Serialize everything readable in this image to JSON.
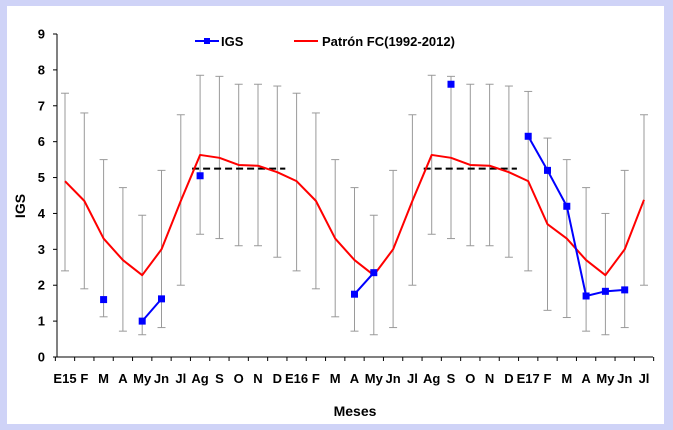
{
  "chart_data": {
    "type": "line",
    "xlabel": "Meses",
    "ylabel": "IGS",
    "ylim": [
      0,
      9
    ],
    "yticks": [
      "0",
      "1",
      "2",
      "3",
      "4",
      "5",
      "6",
      "7",
      "8",
      "9"
    ],
    "categories": [
      "E15",
      "F",
      "M",
      "A",
      "My",
      "Jn",
      "Jl",
      "Ag",
      "S",
      "O",
      "N",
      "D",
      "E16",
      "F",
      "M",
      "A",
      "My",
      "Jn",
      "Jl",
      "Ag",
      "S",
      "O",
      "N",
      "D",
      "E17",
      "F",
      "M",
      "A",
      "My",
      "Jn",
      "Jl"
    ],
    "legend_position": "top",
    "series": [
      {
        "name": "IGS",
        "color": "#0000ff",
        "marker": "square",
        "values": [
          null,
          null,
          1.6,
          null,
          1.0,
          1.62,
          null,
          5.05,
          null,
          null,
          null,
          null,
          null,
          null,
          null,
          1.75,
          2.35,
          null,
          null,
          null,
          7.6,
          null,
          null,
          null,
          6.15,
          5.2,
          4.2,
          1.7,
          1.83,
          1.87,
          null
        ]
      },
      {
        "name": "Patrón FC(1992-2012)",
        "color": "#ff0000",
        "values": [
          4.9,
          4.35,
          3.3,
          2.7,
          2.28,
          3.0,
          4.35,
          5.63,
          5.55,
          5.35,
          5.33,
          5.15,
          4.9,
          4.35,
          3.3,
          2.7,
          2.28,
          3.0,
          4.35,
          5.63,
          5.55,
          5.35,
          5.33,
          5.15,
          4.9,
          3.7,
          3.3,
          2.7,
          2.28,
          3.0,
          4.38
        ],
        "error_upper": [
          7.35,
          6.8,
          5.5,
          4.72,
          3.95,
          5.2,
          6.75,
          7.85,
          7.82,
          7.6,
          7.6,
          7.55,
          7.35,
          6.8,
          5.5,
          4.72,
          3.95,
          5.2,
          6.75,
          7.85,
          7.82,
          7.6,
          7.6,
          7.55,
          7.4,
          6.1,
          5.5,
          4.72,
          4.0,
          5.2,
          6.75
        ],
        "error_lower": [
          2.4,
          1.9,
          1.12,
          0.72,
          0.62,
          0.82,
          2.0,
          3.42,
          3.3,
          3.1,
          3.1,
          2.78,
          2.4,
          1.9,
          1.12,
          0.72,
          0.62,
          0.82,
          2.0,
          3.42,
          3.3,
          3.1,
          3.1,
          2.78,
          2.4,
          1.3,
          1.1,
          0.72,
          0.62,
          0.82,
          2.0
        ]
      }
    ],
    "reference_lines": [
      {
        "style": "dashed",
        "color": "#000000",
        "y": 5.25,
        "from": "Ag",
        "to": "D"
      },
      {
        "style": "dashed",
        "color": "#000000",
        "y": 5.25,
        "from": "Ag",
        "to": "D"
      }
    ],
    "grid": false
  }
}
